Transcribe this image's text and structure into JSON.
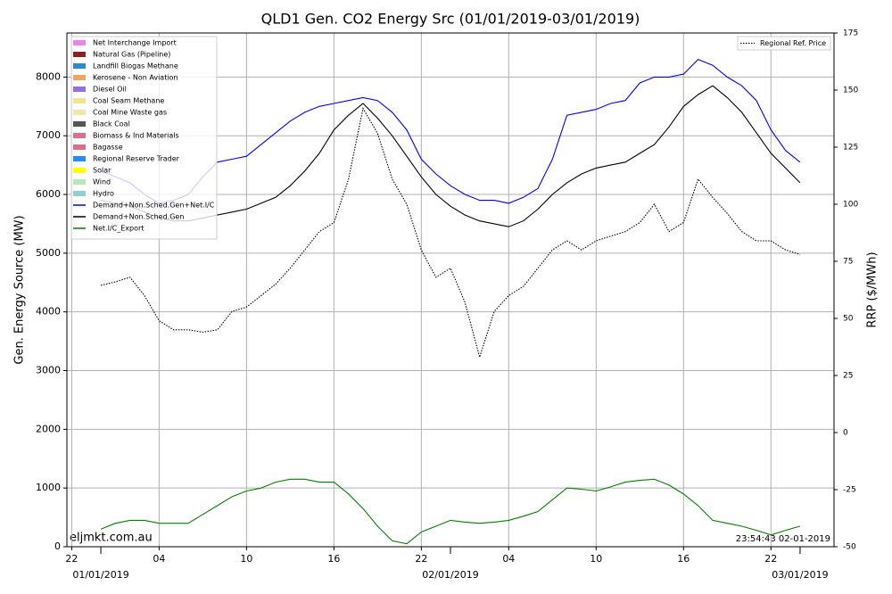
{
  "chart_data": {
    "type": "line",
    "title": "QLD1 Gen. CO2 Energy Src (01/01/2019-03/01/2019)",
    "y_label": "Gen. Energy Source (MW)",
    "y2_label": "RRP ($/MWh)",
    "source_note": "eljmkt.com.au",
    "timestamp_note": "23:54:43 02-01-2019",
    "x": [
      0,
      1,
      2,
      3,
      4,
      5,
      6,
      7,
      8,
      9,
      10,
      11,
      12,
      13,
      14,
      15,
      16,
      17,
      18,
      19,
      20,
      21,
      22,
      23,
      24,
      25,
      26,
      27,
      28,
      29,
      30,
      31,
      32,
      33,
      34,
      35,
      36,
      37,
      38,
      39,
      40,
      41,
      42,
      43,
      44,
      45,
      46,
      47,
      48
    ],
    "xlim": [
      -2.33,
      50.33
    ],
    "xticks": [
      {
        "value": -2,
        "label": "22"
      },
      {
        "value": 4,
        "label": "04"
      },
      {
        "value": 10,
        "label": "10"
      },
      {
        "value": 16,
        "label": "16"
      },
      {
        "value": 22,
        "label": "22"
      },
      {
        "value": 28,
        "label": "04"
      },
      {
        "value": 34,
        "label": "10"
      },
      {
        "value": 40,
        "label": "16"
      },
      {
        "value": 46,
        "label": "22"
      }
    ],
    "date_ticks": [
      {
        "value": 0,
        "label": "01/01/2019"
      },
      {
        "value": 24,
        "label": "02/01/2019"
      },
      {
        "value": 48,
        "label": "03/01/2019"
      }
    ],
    "ylim": [
      0,
      8750
    ],
    "yticks": [
      0,
      1000,
      2000,
      3000,
      4000,
      5000,
      6000,
      7000,
      8000
    ],
    "y2lim": [
      -50,
      175
    ],
    "y2ticks": [
      -50,
      -25,
      0,
      25,
      50,
      75,
      100,
      125,
      150,
      175
    ],
    "grid": true,
    "legend_swatches": [
      {
        "name": "Net Interchange Import",
        "color": "#ee82ee"
      },
      {
        "name": "Natural Gas (Pipeline)",
        "color": "#8b2323"
      },
      {
        "name": "Landfill Biogas Methane",
        "color": "#2e8bcf"
      },
      {
        "name": "Kerosene - Non Aviation",
        "color": "#f4a460"
      },
      {
        "name": "Diesel Oil",
        "color": "#9370db"
      },
      {
        "name": "Coal Seam Methane",
        "color": "#f0e68c"
      },
      {
        "name": "Coal Mine Waste gas",
        "color": "#eee8aa"
      },
      {
        "name": "Black Coal",
        "color": "#555555"
      },
      {
        "name": "Biomass & Ind Materials",
        "color": "#db7093"
      },
      {
        "name": "Bagasse",
        "color": "#d8708a"
      },
      {
        "name": "Regional Reserve Trader",
        "color": "#1e90ff"
      },
      {
        "name": "Solar",
        "color": "#ffff00"
      },
      {
        "name": "Wind",
        "color": "#b2ecb2"
      },
      {
        "name": "Hydro",
        "color": "#96cdcd"
      }
    ],
    "series": [
      {
        "name": "Demand+Non.Sched.Gen+Net.I/C",
        "color": "#0000ff",
        "values": [
          6400,
          6300,
          6200,
          6000,
          5850,
          5900,
          6000,
          6300,
          6550,
          6600,
          6650,
          6850,
          7050,
          7250,
          7400,
          7500,
          7550,
          7600,
          7650,
          7600,
          7400,
          7100,
          6600,
          6350,
          6150,
          6000,
          5900,
          5900,
          5850,
          5950,
          6100,
          6600,
          7350,
          7400,
          7450,
          7550,
          7600,
          7900,
          8000,
          8000,
          8050,
          8300,
          8200,
          8000,
          7850,
          7600,
          7100,
          6750,
          6550
        ]
      },
      {
        "name": "Demand+Non.Sched.Gen",
        "color": "#000000",
        "values": [
          5900,
          5850,
          5800,
          5700,
          5600,
          5550,
          5550,
          5600,
          5650,
          5700,
          5750,
          5850,
          5950,
          6150,
          6400,
          6700,
          7100,
          7350,
          7550,
          7300,
          7000,
          6650,
          6300,
          6000,
          5800,
          5650,
          5550,
          5500,
          5450,
          5550,
          5750,
          6000,
          6200,
          6350,
          6450,
          6500,
          6550,
          6700,
          6850,
          7150,
          7500,
          7700,
          7850,
          7650,
          7400,
          7050,
          6700,
          6450,
          6200
        ]
      },
      {
        "name": "Net.I/C_Export",
        "color": "#008000",
        "values": [
          300,
          400,
          450,
          450,
          400,
          400,
          400,
          550,
          700,
          850,
          950,
          1000,
          1100,
          1150,
          1150,
          1100,
          1100,
          900,
          650,
          350,
          100,
          50,
          250,
          350,
          450,
          420,
          400,
          420,
          450,
          520,
          600,
          800,
          1000,
          980,
          950,
          1020,
          1100,
          1130,
          1150,
          1050,
          900,
          700,
          450,
          400,
          350,
          280,
          200,
          280,
          350
        ]
      },
      {
        "name": "Regional Ref. Price",
        "color": "#000000",
        "axis": "y2",
        "style": "dotted",
        "values": [
          64.5,
          66,
          68,
          60,
          49,
          45,
          45,
          44,
          45,
          53,
          55,
          60,
          65,
          72,
          80,
          88,
          92,
          111,
          142,
          131,
          111,
          100,
          80,
          68,
          72,
          57,
          33,
          53,
          60,
          64,
          72,
          80,
          84,
          80,
          84,
          86,
          88,
          92,
          100,
          88,
          92,
          111,
          103,
          96,
          88,
          84,
          84,
          80,
          78
        ]
      }
    ]
  }
}
